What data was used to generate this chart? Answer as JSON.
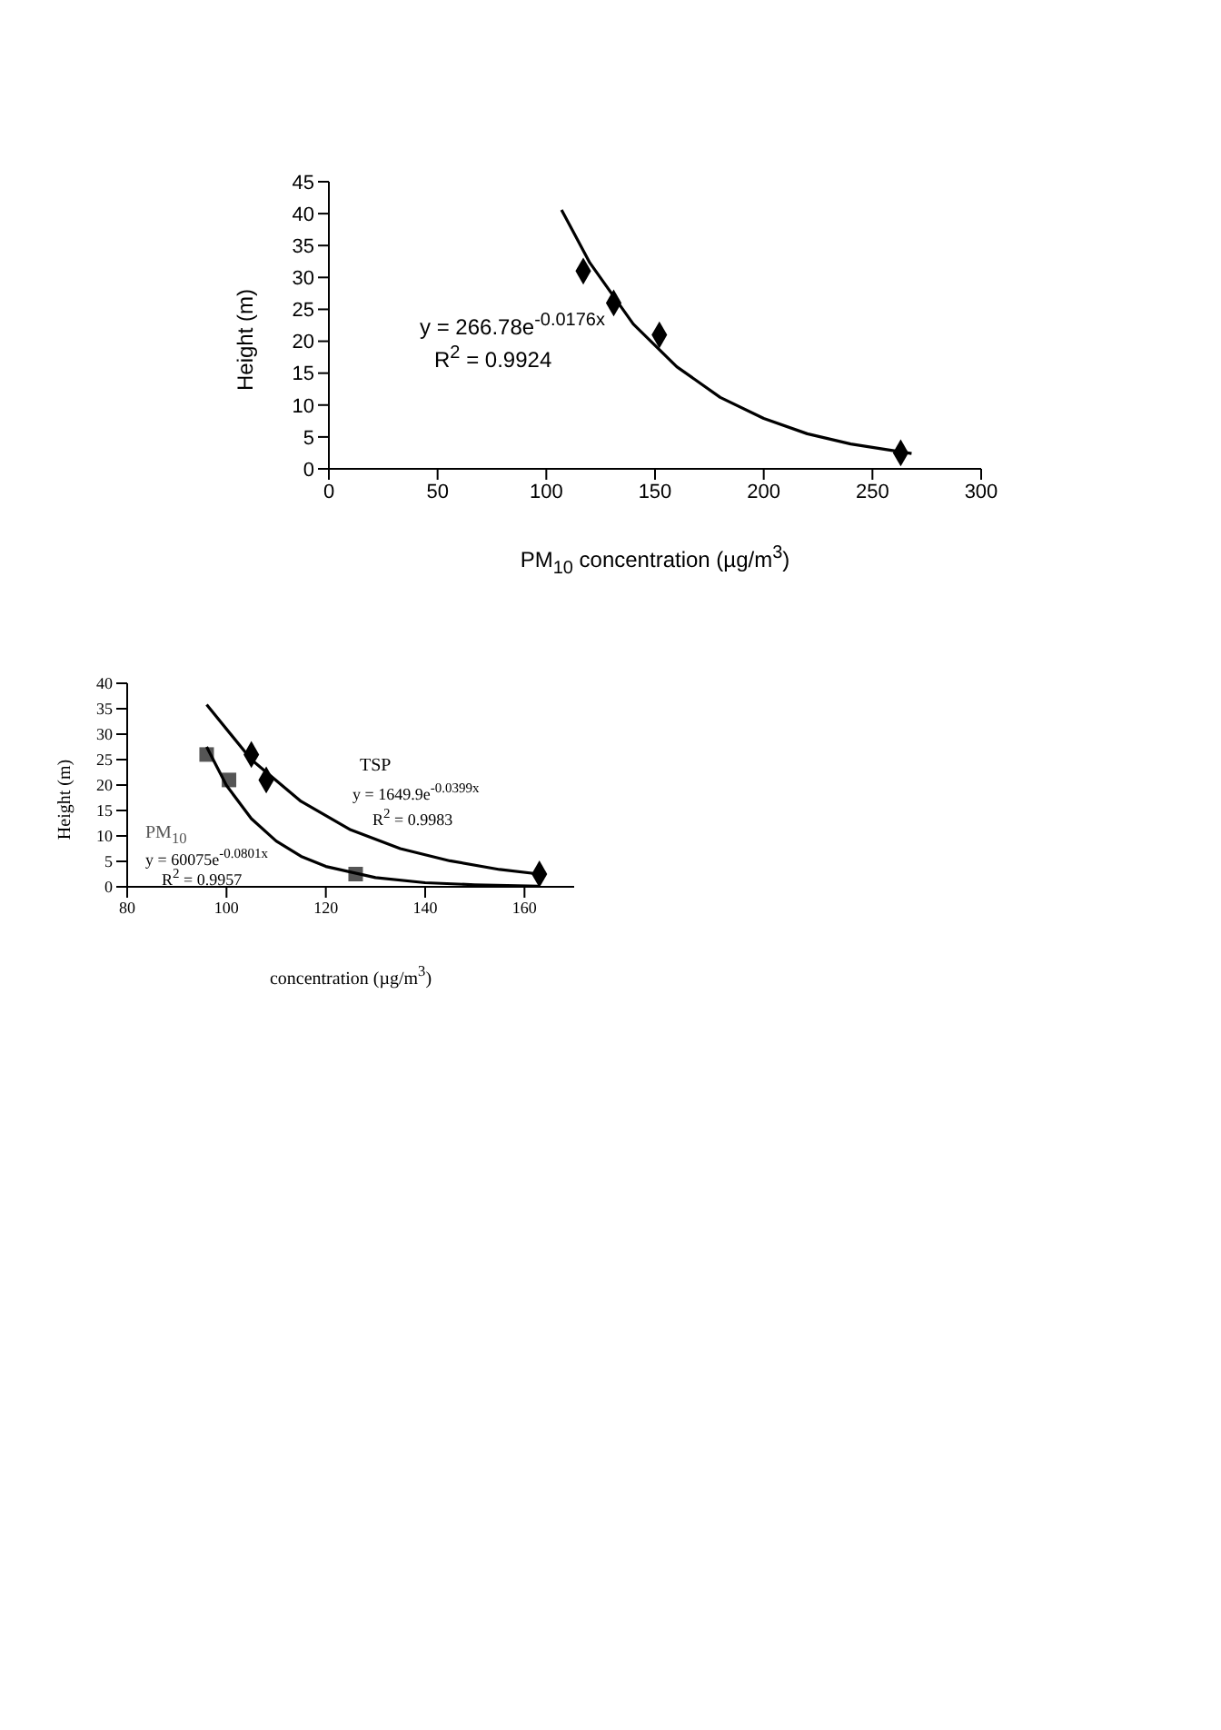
{
  "chart_data": [
    {
      "type": "scatter",
      "xlabel": "PM$_{10}$ concentration (µg/m$^{3}$)",
      "ylabel": "Height (m)",
      "xlim": [
        0,
        300
      ],
      "xticks": [
        0,
        50,
        100,
        150,
        200,
        250,
        300
      ],
      "ylim": [
        0,
        45
      ],
      "yticks": [
        0,
        5,
        10,
        15,
        20,
        25,
        30,
        35,
        40,
        45
      ],
      "grid": false,
      "legend": false,
      "annotations": [
        "y = 266.78e$^{-0.0176x}$",
        "R$^{2}$ = 0.9924"
      ],
      "series": [
        {
          "color": "#000000",
          "marker": "diamond",
          "x": [
            117,
            131,
            152,
            263
          ],
          "values": [
            31,
            26,
            21,
            2.5
          ]
        },
        {
          "type": "line",
          "color": "#000000",
          "marker": "none",
          "x": [
            107,
            120,
            140,
            160,
            180,
            200,
            220,
            240,
            268
          ],
          "values": [
            40.6,
            32.3,
            22.7,
            16.0,
            11.2,
            7.9,
            5.5,
            3.9,
            2.4
          ]
        }
      ]
    },
    {
      "type": "scatter",
      "xlabel": "concentration (µg/m$^{3}$)",
      "ylabel": "Height (m)",
      "xlim": [
        80,
        170
      ],
      "xticks": [
        80,
        100,
        120,
        140,
        160
      ],
      "ylim": [
        0,
        40
      ],
      "yticks": [
        0,
        5,
        10,
        15,
        20,
        25,
        30,
        35,
        40
      ],
      "grid": false,
      "legend": false,
      "annotations": [
        "y = 1649.9e$^{-0.0399x}$",
        "R$^{2}$ = 0.9983",
        "y = 60075e$^{-0.0801x}$",
        "R$^{2}$ = 0.9957"
      ],
      "series": [
        {
          "name": "TSP",
          "color": "#000000",
          "marker": "diamond",
          "x": [
            105,
            108,
            163
          ],
          "values": [
            26,
            21,
            2.5
          ]
        },
        {
          "name": "PM$_{10}$",
          "color": "#555555",
          "marker": "square",
          "x": [
            96,
            100.5,
            126
          ],
          "values": [
            26,
            21,
            2.5
          ]
        },
        {
          "type": "line",
          "color": "#000000",
          "marker": "none",
          "x": [
            96,
            105,
            115,
            125,
            135,
            145,
            155,
            163
          ],
          "values": [
            35.8,
            25.0,
            16.8,
            11.2,
            7.5,
            5.1,
            3.4,
            2.5
          ]
        },
        {
          "type": "line",
          "color": "#000000",
          "marker": "none",
          "x": [
            96,
            100,
            105,
            110,
            115,
            120,
            130,
            140,
            150,
            163
          ],
          "values": [
            27.5,
            19.9,
            13.4,
            9.0,
            6.0,
            4.0,
            1.8,
            0.8,
            0.4,
            0.1
          ]
        }
      ]
    }
  ]
}
